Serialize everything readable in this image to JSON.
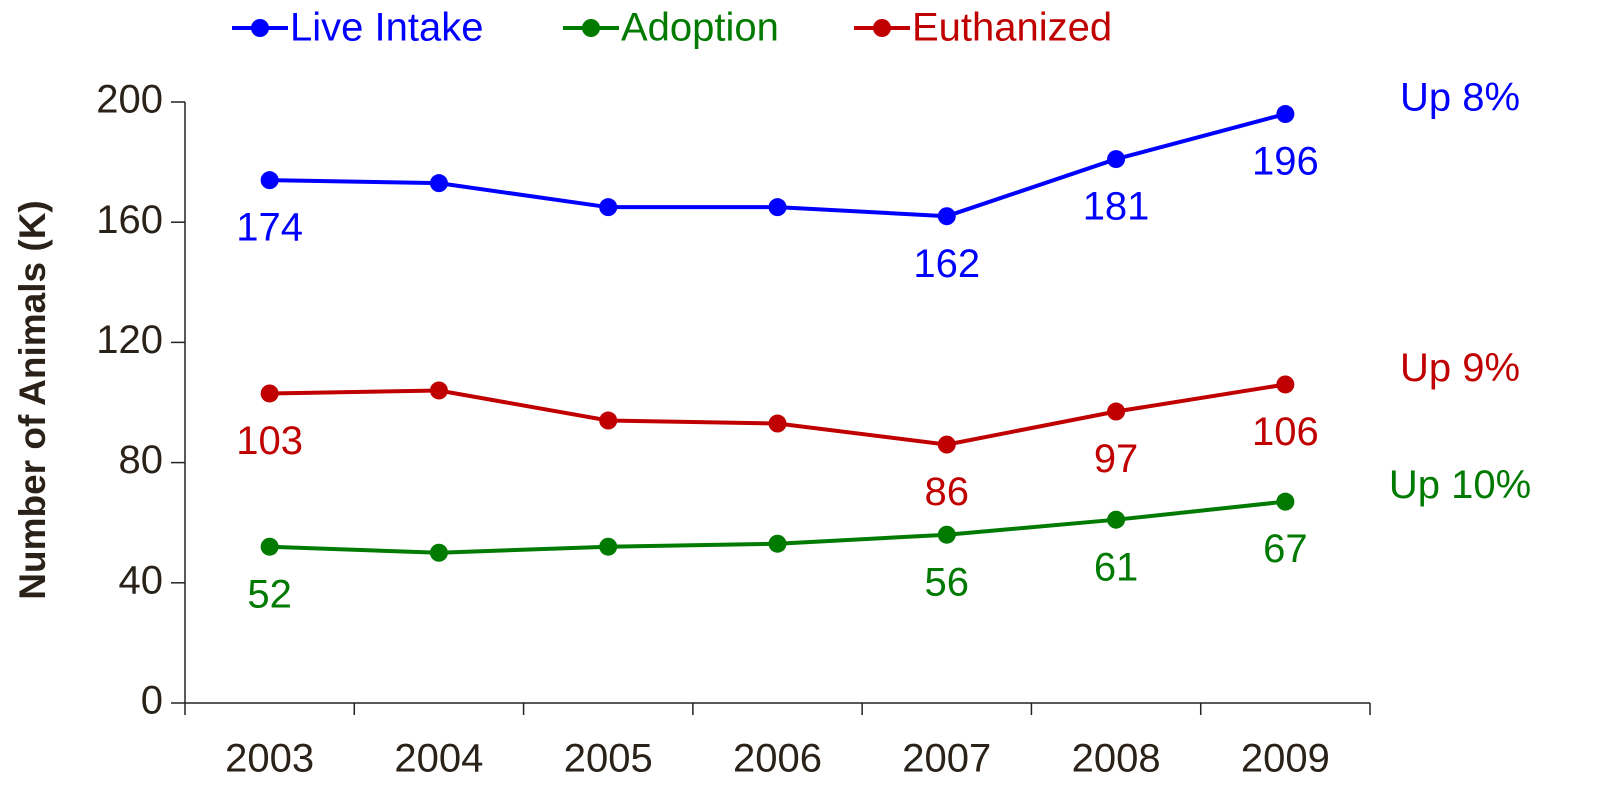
{
  "chart_data": {
    "type": "line",
    "y_label": "Number of Animals (K)",
    "categories": [
      "2003",
      "2004",
      "2005",
      "2006",
      "2007",
      "2008",
      "2009"
    ],
    "series": [
      {
        "name": "Live Intake",
        "color": "#0000ff",
        "values": [
          174,
          173,
          165,
          165,
          162,
          181,
          196
        ],
        "value_labels": [
          "174",
          null,
          null,
          null,
          "162",
          "181",
          "196"
        ],
        "annotation": "Up 8%"
      },
      {
        "name": "Adoption",
        "color": "#007a00",
        "values": [
          52,
          50,
          52,
          53,
          56,
          61,
          67
        ],
        "value_labels": [
          "52",
          null,
          null,
          null,
          "56",
          "61",
          "67"
        ],
        "annotation": "Up 10%"
      },
      {
        "name": "Euthanized",
        "color": "#c00000",
        "values": [
          103,
          104,
          94,
          93,
          86,
          97,
          106
        ],
        "value_labels": [
          "103",
          null,
          null,
          null,
          "86",
          "97",
          "106"
        ],
        "annotation": "Up 9%"
      }
    ],
    "ylim": [
      0,
      200
    ],
    "yticks": [
      0,
      40,
      80,
      120,
      160,
      200
    ],
    "grid": false
  }
}
